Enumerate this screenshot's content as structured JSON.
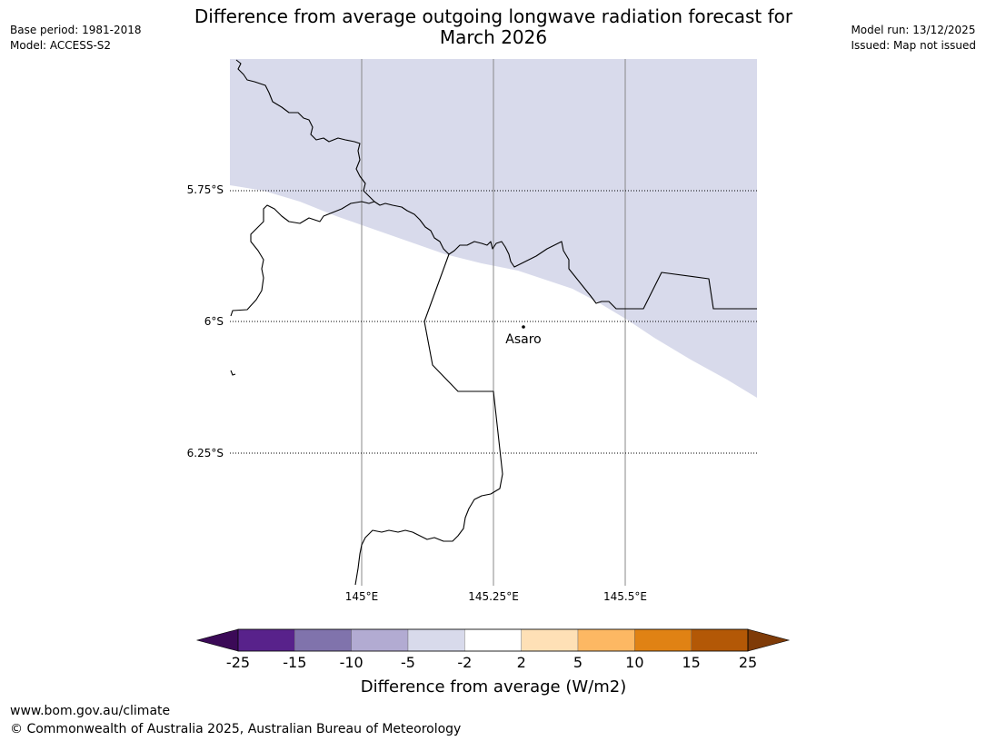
{
  "title": {
    "line1": "Difference from average outgoing longwave radiation forecast for",
    "line2": "March 2026"
  },
  "meta_left": {
    "base_period": "Base period: 1981-2018",
    "model": "Model: ACCESS-S2"
  },
  "meta_right": {
    "model_run": "Model run: 13/12/2025",
    "issued": "Issued: Map not issued"
  },
  "map": {
    "lat_labels": [
      "5.75°S",
      "6°S",
      "6.25°S"
    ],
    "lon_labels": [
      "145°E",
      "145.25°E",
      "145.5°E"
    ],
    "town": {
      "name": "Asaro"
    }
  },
  "colorbar": {
    "title": "Difference from average (W/m2)",
    "ticks": [
      "-25",
      "-15",
      "-10",
      "-5",
      "-2",
      "2",
      "5",
      "10",
      "15",
      "25"
    ],
    "colors": [
      "#3b0a57",
      "#58228b",
      "#8073ac",
      "#b2abd2",
      "#d8daeb",
      "#ffffff",
      "#fee0b6",
      "#fdb863",
      "#e08214",
      "#b35806",
      "#7f3b08"
    ]
  },
  "footer": {
    "url": "www.bom.gov.au/climate",
    "copyright": "© Commonwealth of Australia 2025, Australian Bureau of Meteorology"
  }
}
